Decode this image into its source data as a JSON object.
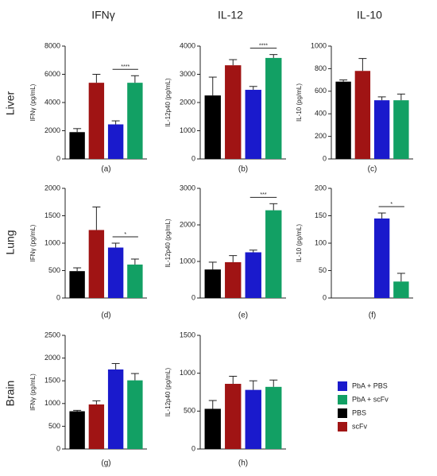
{
  "column_titles": [
    "IFNγ",
    "IL-12",
    "IL-10"
  ],
  "row_labels": [
    "Liver",
    "Lung",
    "Brain"
  ],
  "legend": [
    {
      "name": "PbA + PBS",
      "color": "#1a1acc"
    },
    {
      "name": "PbA + scFv",
      "color": "#12a064"
    },
    {
      "name": "PBS",
      "color": "#000000"
    },
    {
      "name": "scFv",
      "color": "#a01414"
    }
  ],
  "chart_data": [
    {
      "type": "bar",
      "label": "(a)",
      "ylabel": "IFNγ (pg/mL)",
      "categories": [
        null,
        null,
        null,
        null
      ],
      "values": [
        1900,
        5400,
        2450,
        5400
      ],
      "errors": [
        250,
        600,
        250,
        500
      ],
      "colors": [
        "#000000",
        "#a01414",
        "#1a1acc",
        "#12a064"
      ],
      "ylim": [
        0,
        8000
      ],
      "yticks": [
        0,
        2000,
        4000,
        6000,
        8000
      ],
      "significance": "****"
    },
    {
      "type": "bar",
      "label": "(b)",
      "ylabel": "IL-12p40 (pg/mL)",
      "categories": [
        null,
        null,
        null,
        null
      ],
      "values": [
        2250,
        3320,
        2450,
        3580
      ],
      "errors": [
        650,
        200,
        120,
        120
      ],
      "colors": [
        "#000000",
        "#a01414",
        "#1a1acc",
        "#12a064"
      ],
      "ylim": [
        0,
        4000
      ],
      "yticks": [
        0,
        1000,
        2000,
        3000,
        4000
      ],
      "significance": "****"
    },
    {
      "type": "bar",
      "label": "(c)",
      "ylabel": "IL-10 (pg/mL)",
      "categories": [
        null,
        null,
        null,
        null
      ],
      "values": [
        685,
        780,
        520,
        520
      ],
      "errors": [
        15,
        110,
        30,
        55
      ],
      "colors": [
        "#000000",
        "#a01414",
        "#1a1acc",
        "#12a064"
      ],
      "ylim": [
        0,
        1000
      ],
      "yticks": [
        0,
        200,
        400,
        600,
        800,
        1000
      ]
    },
    {
      "type": "bar",
      "label": "(d)",
      "ylabel": "IFNγ (pg/mL)",
      "categories": [
        null,
        null,
        null,
        null
      ],
      "values": [
        490,
        1240,
        920,
        610
      ],
      "errors": [
        60,
        420,
        80,
        100
      ],
      "colors": [
        "#000000",
        "#a01414",
        "#1a1acc",
        "#12a064"
      ],
      "ylim": [
        0,
        2000
      ],
      "yticks": [
        0,
        500,
        1000,
        1500,
        2000
      ],
      "significance": "*"
    },
    {
      "type": "bar",
      "label": "(e)",
      "ylabel": "IL-12p40 (pg/mL)",
      "categories": [
        null,
        null,
        null,
        null
      ],
      "values": [
        780,
        980,
        1250,
        2400
      ],
      "errors": [
        200,
        180,
        60,
        180
      ],
      "colors": [
        "#000000",
        "#a01414",
        "#1a1acc",
        "#12a064"
      ],
      "ylim": [
        0,
        3000
      ],
      "yticks": [
        0,
        1000,
        2000,
        3000
      ],
      "significance": "***"
    },
    {
      "type": "bar",
      "label": "(f)",
      "ylabel": "IL-10 (pg/mL)",
      "categories": [
        null,
        null,
        null,
        null
      ],
      "values": [
        null,
        null,
        145,
        30
      ],
      "errors": [
        null,
        null,
        10,
        15
      ],
      "colors": [
        "#000000",
        "#a01414",
        "#1a1acc",
        "#12a064"
      ],
      "ylim": [
        0,
        200
      ],
      "yticks": [
        0,
        50,
        100,
        150,
        200
      ],
      "significance": "*"
    },
    {
      "type": "bar",
      "label": "(g)",
      "ylabel": "IFNγ (pg/mL)",
      "categories": [
        null,
        null,
        null,
        null
      ],
      "values": [
        830,
        980,
        1750,
        1510
      ],
      "errors": [
        20,
        80,
        130,
        150
      ],
      "colors": [
        "#000000",
        "#a01414",
        "#1a1acc",
        "#12a064"
      ],
      "ylim": [
        0,
        2500
      ],
      "yticks": [
        0,
        500,
        1000,
        1500,
        2000,
        2500
      ]
    },
    {
      "type": "bar",
      "label": "(h)",
      "ylabel": "IL-12p40 (pg/mL)",
      "categories": [
        null,
        null,
        null,
        null
      ],
      "values": [
        530,
        860,
        780,
        820
      ],
      "errors": [
        110,
        100,
        120,
        90
      ],
      "colors": [
        "#000000",
        "#a01414",
        "#1a1acc",
        "#12a064"
      ],
      "ylim": [
        0,
        1500
      ],
      "yticks": [
        0,
        500,
        1000,
        1500
      ]
    }
  ]
}
